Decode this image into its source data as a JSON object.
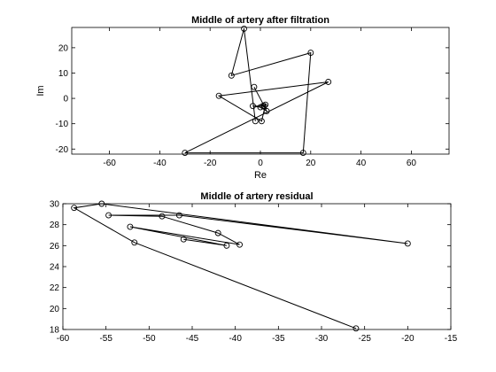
{
  "chart_data": [
    {
      "type": "line",
      "title": "Middle of artery after filtration",
      "xlabel": "Re",
      "ylabel": "Im",
      "xlim": [
        -75,
        75
      ],
      "ylim": [
        -22,
        28
      ],
      "xticks": [
        -60,
        -40,
        -20,
        0,
        20,
        40,
        60
      ],
      "yticks": [
        -20,
        -10,
        0,
        10,
        20
      ],
      "xtick_labels": [
        "-60",
        "-40",
        "-20",
        "0",
        "20",
        "40",
        "60"
      ],
      "ytick_labels": [
        "-20",
        "-10",
        "0",
        "10",
        "20"
      ],
      "grid": false,
      "marker": "circle",
      "series": [
        {
          "x": [
            -2.5,
            1.5,
            2.5,
            0,
            -3,
            1,
            2,
            0.5,
            -16.5,
            27,
            -30,
            17,
            20,
            -11.5,
            -6.5,
            -2
          ],
          "y": [
            4.5,
            -3,
            -5,
            -3.5,
            -3,
            -3,
            -2.5,
            -9,
            1,
            6.5,
            -21.5,
            -21.5,
            18,
            9,
            27.5,
            -9
          ]
        }
      ]
    },
    {
      "type": "line",
      "title": "Middle of artery residual",
      "xlabel": "",
      "ylabel": "",
      "xlim": [
        -60,
        -15
      ],
      "ylim": [
        18,
        30
      ],
      "xticks": [
        -60,
        -55,
        -50,
        -45,
        -40,
        -35,
        -30,
        -25,
        -20,
        -15
      ],
      "yticks": [
        18,
        20,
        22,
        24,
        26,
        28,
        30
      ],
      "xtick_labels": [
        "-60",
        "-55",
        "-50",
        "-45",
        "-40",
        "-35",
        "-30",
        "-25",
        "-20",
        "-15"
      ],
      "ytick_labels": [
        "18",
        "20",
        "22",
        "24",
        "26",
        "28",
        "30"
      ],
      "grid": false,
      "marker": "circle",
      "series": [
        {
          "x": [
            -26,
            -51.7,
            -58.7,
            -55.5,
            -20,
            -46.5,
            -54.7,
            -48.5,
            -42,
            -39.5,
            -52.2,
            -41,
            -46
          ],
          "y": [
            18.1,
            26.3,
            29.6,
            30,
            26.2,
            28.9,
            28.9,
            28.8,
            27.2,
            26.1,
            27.8,
            26,
            26.6
          ]
        }
      ]
    }
  ]
}
